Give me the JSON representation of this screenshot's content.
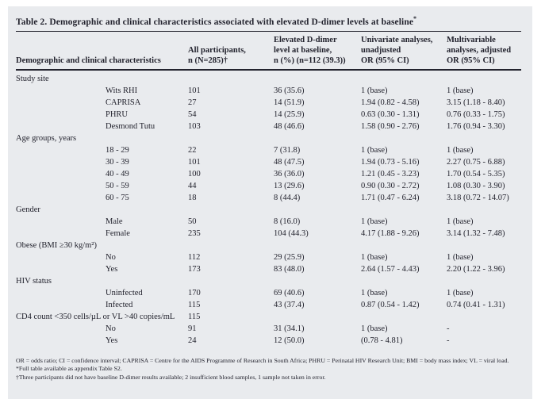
{
  "table": {
    "title": "Table 2. Demographic and clinical characteristics associated with elevated D-dimer levels at baseline",
    "title_marker": "*",
    "columns": [
      "Demographic and clinical characteristics",
      "All participants,\nn (N=285)†",
      "Elevated D-dimer\nlevel at baseline,\nn (%) (n=112 (39.3))",
      "Univariate analyses,\nunadjusted\nOR (95% CI)",
      "Multivariable\nanalyses, adjusted\nOR (95% CI)"
    ],
    "rows": [
      {
        "type": "section",
        "cells": [
          "Study site",
          "",
          "",
          "",
          ""
        ]
      },
      {
        "type": "item",
        "cells": [
          "Wits RHI",
          "101",
          "36 (35.6)",
          "1 (base)",
          "1 (base)"
        ]
      },
      {
        "type": "item",
        "cells": [
          "CAPRISA",
          "27",
          "14 (51.9)",
          "1.94 (0.82 - 4.58)",
          "3.15 (1.18 - 8.40)"
        ]
      },
      {
        "type": "item",
        "cells": [
          "PHRU",
          "54",
          "14 (25.9)",
          "0.63 (0.30 - 1.31)",
          "0.76 (0.33 - 1.75)"
        ]
      },
      {
        "type": "item",
        "cells": [
          "Desmond Tutu",
          "103",
          "48 (46.6)",
          "1.58 (0.90 - 2.76)",
          "1.76 (0.94 - 3.30)"
        ]
      },
      {
        "type": "section",
        "cells": [
          "Age groups, years",
          "",
          "",
          "",
          ""
        ]
      },
      {
        "type": "item",
        "cells": [
          "18 - 29",
          "22",
          "7 (31.8)",
          "1 (base)",
          "1 (base)"
        ]
      },
      {
        "type": "item",
        "cells": [
          "30 - 39",
          "101",
          "48 (47.5)",
          "1.94 (0.73 - 5.16)",
          "2.27 (0.75 - 6.88)"
        ]
      },
      {
        "type": "item",
        "cells": [
          "40 - 49",
          "100",
          "36 (36.0)",
          "1.21 (0.45 - 3.23)",
          "1.70 (0.54 - 5.35)"
        ]
      },
      {
        "type": "item",
        "cells": [
          "50 - 59",
          "44",
          "13 (29.6)",
          "0.90 (0.30 - 2.72)",
          "1.08 (0.30 - 3.90)"
        ]
      },
      {
        "type": "item",
        "cells": [
          "60 - 75",
          "18",
          "8 (44.4)",
          "1.71 (0.47 - 6.24)",
          "3.18 (0.72 - 14.07)"
        ]
      },
      {
        "type": "section",
        "cells": [
          "Gender",
          "",
          "",
          "",
          ""
        ]
      },
      {
        "type": "item",
        "cells": [
          "Male",
          "50",
          "8 (16.0)",
          "1 (base)",
          "1 (base)"
        ]
      },
      {
        "type": "item",
        "cells": [
          "Female",
          "235",
          "104 (44.3)",
          "4.17 (1.88 - 9.26)",
          "3.14 (1.32 - 7.48)"
        ]
      },
      {
        "type": "section",
        "cells": [
          "Obese (BMI ≥30 kg/m²)",
          "",
          "",
          "",
          ""
        ]
      },
      {
        "type": "item",
        "cells": [
          "No",
          "112",
          "29 (25.9)",
          "1 (base)",
          "1 (base)"
        ]
      },
      {
        "type": "item",
        "cells": [
          "Yes",
          "173",
          "83 (48.0)",
          "2.64 (1.57 - 4.43)",
          "2.20 (1.22 - 3.96)"
        ]
      },
      {
        "type": "section",
        "cells": [
          "HIV status",
          "",
          "",
          "",
          ""
        ]
      },
      {
        "type": "item",
        "cells": [
          "Uninfected",
          "170",
          "69 (40.6)",
          "1 (base)",
          "1 (base)"
        ]
      },
      {
        "type": "item",
        "cells": [
          "Infected",
          "115",
          "43 (37.4)",
          "0.87 (0.54 - 1.42)",
          "0.74 (0.41 - 1.31)"
        ]
      },
      {
        "type": "section",
        "cells": [
          "CD4 count <350 cells/µL or VL >40 copies/mL",
          "115",
          "",
          "",
          ""
        ]
      },
      {
        "type": "item",
        "cells": [
          "No",
          "91",
          "31 (34.1)",
          "1 (base)",
          "-"
        ]
      },
      {
        "type": "item",
        "cells": [
          "Yes",
          "24",
          "12 (50.0)",
          "(0.78 - 4.81)",
          "-"
        ]
      }
    ],
    "footnotes": [
      "OR = odds ratio; CI = confidence interval; CAPRISA = Centre for the AIDS Programme of Research in South Africa; PHRU = Perinatal HIV Research Unit; BMI = body mass index; VL = viral load.",
      "*Full table available as appendix Table S2.",
      "†Three participants did not have baseline D-dimer results available; 2 insufficient blood samples, 1 sample not taken in error."
    ]
  }
}
